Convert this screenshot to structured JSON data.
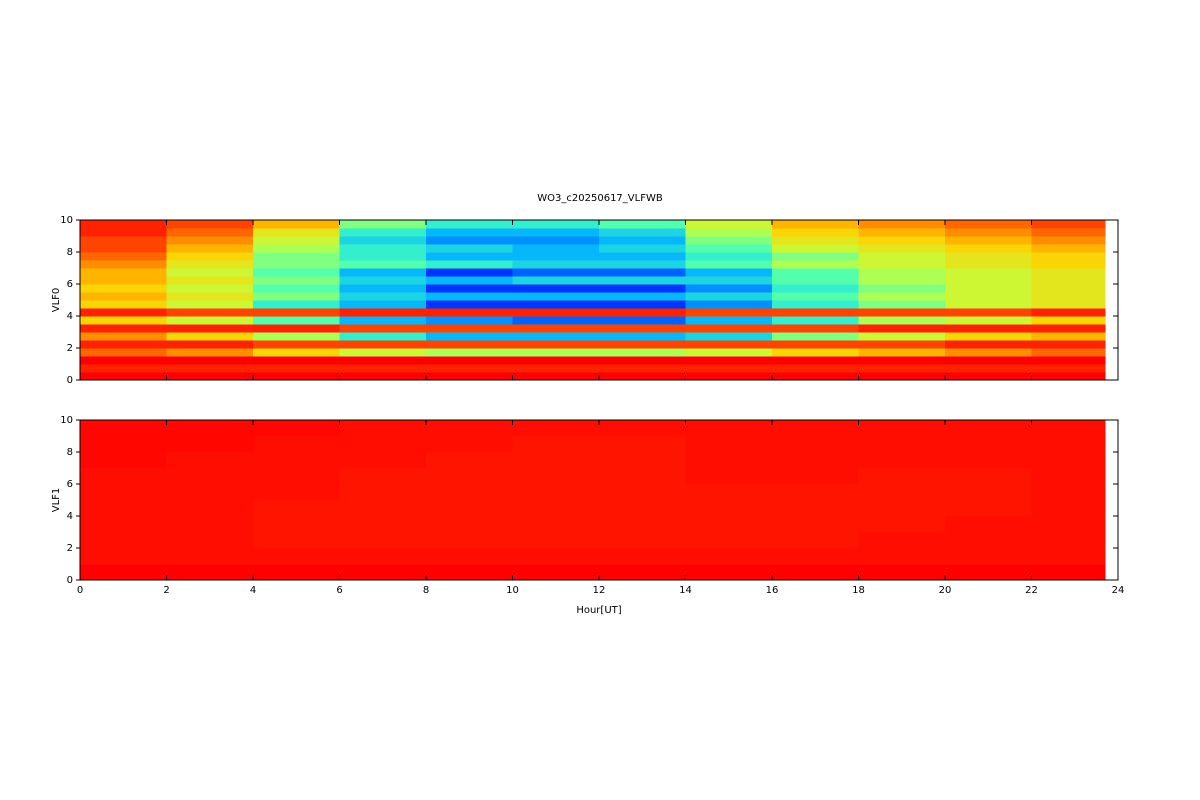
{
  "chart_data": [
    {
      "type": "heatmap",
      "title": "WO3_c20250617_VLFWB",
      "ylabel": "VLF0",
      "xlim": [
        0,
        24
      ],
      "xticks": [
        0,
        2,
        4,
        6,
        8,
        10,
        12,
        14,
        16,
        18,
        20,
        22,
        24
      ],
      "ylim": [
        0,
        10
      ],
      "yticks": [
        0,
        2,
        4,
        6,
        8,
        10
      ],
      "colormap": [
        "#00008f",
        "#0030ff",
        "#00b0ff",
        "#40ffc0",
        "#c0ff40",
        "#ffd000",
        "#ff6000",
        "#ff0000"
      ],
      "x_edges": [
        0,
        2,
        4,
        6,
        8,
        10,
        12,
        14,
        16,
        18,
        20,
        22,
        23.7
      ],
      "y_edges": [
        0,
        0.5,
        1,
        1.5,
        2,
        2.5,
        3,
        3.5,
        4,
        4.5,
        5,
        5.5,
        6,
        6.5,
        7,
        7.5,
        8,
        8.5,
        9,
        9.5,
        10
      ],
      "values": [
        [
          1,
          1,
          1,
          1,
          1,
          1,
          1,
          1,
          1,
          1,
          1,
          1
        ],
        [
          0.95,
          0.95,
          0.95,
          0.95,
          0.95,
          0.95,
          0.95,
          0.95,
          0.95,
          0.95,
          0.95,
          0.95
        ],
        [
          1,
          1,
          1,
          1,
          1,
          1,
          1,
          1,
          1,
          1,
          1,
          1
        ],
        [
          0.85,
          0.8,
          0.7,
          0.6,
          0.55,
          0.55,
          0.55,
          0.6,
          0.7,
          0.75,
          0.8,
          0.85
        ],
        [
          0.95,
          0.95,
          0.9,
          0.9,
          0.9,
          0.9,
          0.9,
          0.9,
          0.9,
          0.9,
          0.95,
          0.95
        ],
        [
          0.8,
          0.7,
          0.55,
          0.4,
          0.3,
          0.3,
          0.3,
          0.35,
          0.5,
          0.6,
          0.7,
          0.75
        ],
        [
          0.95,
          0.95,
          0.95,
          0.9,
          0.9,
          0.9,
          0.9,
          0.9,
          0.9,
          0.95,
          0.95,
          0.95
        ],
        [
          0.7,
          0.6,
          0.45,
          0.3,
          0.25,
          0.2,
          0.2,
          0.3,
          0.4,
          0.55,
          0.6,
          0.7
        ],
        [
          0.95,
          0.9,
          0.9,
          0.95,
          0.95,
          0.95,
          0.95,
          0.9,
          0.9,
          0.9,
          0.9,
          0.95
        ],
        [
          0.7,
          0.6,
          0.4,
          0.3,
          0.15,
          0.15,
          0.15,
          0.25,
          0.4,
          0.5,
          0.6,
          0.65
        ],
        [
          0.75,
          0.65,
          0.5,
          0.35,
          0.3,
          0.3,
          0.3,
          0.35,
          0.45,
          0.55,
          0.6,
          0.65
        ],
        [
          0.7,
          0.6,
          0.45,
          0.3,
          0.15,
          0.15,
          0.15,
          0.25,
          0.4,
          0.5,
          0.6,
          0.65
        ],
        [
          0.75,
          0.65,
          0.5,
          0.35,
          0.3,
          0.35,
          0.35,
          0.35,
          0.45,
          0.55,
          0.6,
          0.65
        ],
        [
          0.75,
          0.6,
          0.45,
          0.3,
          0.15,
          0.2,
          0.2,
          0.3,
          0.45,
          0.55,
          0.6,
          0.65
        ],
        [
          0.8,
          0.65,
          0.5,
          0.45,
          0.4,
          0.35,
          0.35,
          0.45,
          0.55,
          0.6,
          0.65,
          0.7
        ],
        [
          0.85,
          0.7,
          0.5,
          0.4,
          0.3,
          0.3,
          0.3,
          0.4,
          0.5,
          0.6,
          0.65,
          0.7
        ],
        [
          0.9,
          0.75,
          0.55,
          0.4,
          0.35,
          0.3,
          0.35,
          0.45,
          0.6,
          0.65,
          0.7,
          0.75
        ],
        [
          0.9,
          0.8,
          0.6,
          0.35,
          0.25,
          0.25,
          0.3,
          0.5,
          0.65,
          0.7,
          0.75,
          0.8
        ],
        [
          0.95,
          0.85,
          0.65,
          0.4,
          0.3,
          0.3,
          0.35,
          0.55,
          0.7,
          0.75,
          0.8,
          0.85
        ],
        [
          0.95,
          0.9,
          0.75,
          0.5,
          0.4,
          0.4,
          0.45,
          0.6,
          0.75,
          0.8,
          0.85,
          0.9
        ]
      ]
    },
    {
      "type": "heatmap",
      "ylabel": "VLF1",
      "xlabel": "Hour[UT]",
      "xlim": [
        0,
        24
      ],
      "xticks": [
        0,
        2,
        4,
        6,
        8,
        10,
        12,
        14,
        16,
        18,
        20,
        22,
        24
      ],
      "ylim": [
        0,
        10
      ],
      "yticks": [
        0,
        2,
        4,
        6,
        8,
        10
      ],
      "colormap": [
        "#00008f",
        "#0030ff",
        "#00b0ff",
        "#40ffc0",
        "#c0ff40",
        "#ffd000",
        "#ff6000",
        "#ff0000"
      ],
      "x_edges": [
        0,
        2,
        4,
        6,
        8,
        10,
        12,
        14,
        16,
        18,
        20,
        22,
        23.7
      ],
      "y_edges": [
        0,
        1,
        2,
        3,
        4,
        5,
        6,
        7,
        8,
        9,
        10
      ],
      "values": [
        [
          1,
          1,
          1,
          1,
          1,
          1,
          1,
          1,
          1,
          1,
          1,
          1
        ],
        [
          0.98,
          0.98,
          0.98,
          0.98,
          0.98,
          0.98,
          0.98,
          0.98,
          0.98,
          0.98,
          0.98,
          0.98
        ],
        [
          0.98,
          0.98,
          0.97,
          0.97,
          0.97,
          0.97,
          0.97,
          0.97,
          0.97,
          0.98,
          0.98,
          0.98
        ],
        [
          0.98,
          0.98,
          0.97,
          0.97,
          0.97,
          0.97,
          0.97,
          0.97,
          0.97,
          0.97,
          0.98,
          0.98
        ],
        [
          0.98,
          0.98,
          0.97,
          0.97,
          0.97,
          0.97,
          0.97,
          0.97,
          0.97,
          0.97,
          0.97,
          0.98
        ],
        [
          0.98,
          0.98,
          0.98,
          0.97,
          0.97,
          0.97,
          0.97,
          0.97,
          0.97,
          0.97,
          0.97,
          0.98
        ],
        [
          0.98,
          0.98,
          0.98,
          0.97,
          0.97,
          0.97,
          0.97,
          0.98,
          0.98,
          0.97,
          0.97,
          0.98
        ],
        [
          0.99,
          0.98,
          0.98,
          0.98,
          0.97,
          0.97,
          0.97,
          0.98,
          0.98,
          0.98,
          0.98,
          0.98
        ],
        [
          0.99,
          0.99,
          0.98,
          0.98,
          0.98,
          0.97,
          0.97,
          0.98,
          0.98,
          0.98,
          0.98,
          0.98
        ],
        [
          0.99,
          0.99,
          0.99,
          0.98,
          0.98,
          0.98,
          0.98,
          0.98,
          0.98,
          0.98,
          0.98,
          0.98
        ]
      ]
    }
  ]
}
